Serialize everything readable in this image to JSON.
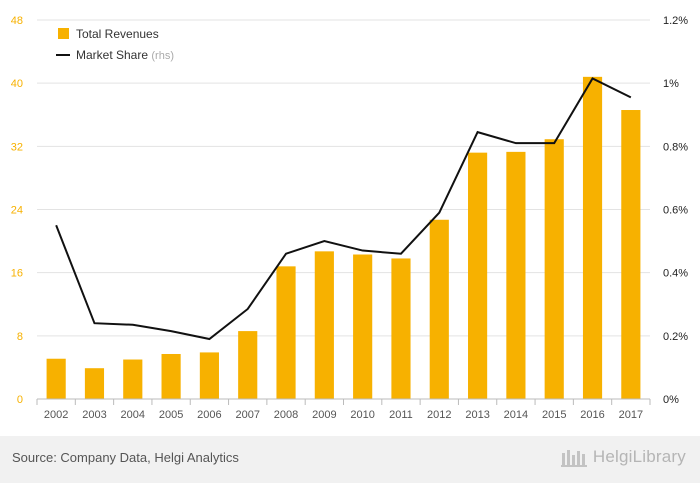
{
  "chart_data": {
    "type": "bar",
    "categories": [
      "2002",
      "2003",
      "2004",
      "2005",
      "2006",
      "2007",
      "2008",
      "2009",
      "2010",
      "2011",
      "2012",
      "2013",
      "2014",
      "2015",
      "2016",
      "2017"
    ],
    "series": [
      {
        "name": "Total Revenues",
        "type": "bar",
        "axis": "left",
        "values": [
          5.1,
          3.9,
          5.0,
          5.7,
          5.9,
          8.6,
          16.8,
          18.7,
          18.3,
          17.8,
          22.7,
          31.2,
          31.3,
          32.9,
          40.8,
          36.6
        ]
      },
      {
        "name": "Market Share",
        "name_suffix": "(rhs)",
        "type": "line",
        "axis": "right",
        "values": [
          0.55,
          0.24,
          0.235,
          0.215,
          0.19,
          0.285,
          0.46,
          0.5,
          0.47,
          0.46,
          0.59,
          0.845,
          0.81,
          0.81,
          1.015,
          0.955
        ]
      }
    ],
    "y_left": {
      "ticks": [
        0,
        8,
        16,
        24,
        32,
        40,
        48
      ],
      "ylim": [
        0,
        48
      ]
    },
    "y_right": {
      "ticks": [
        0,
        0.2,
        0.4,
        0.6,
        0.8,
        1.0,
        1.2
      ],
      "tick_labels": [
        "0%",
        "0.2%",
        "0.4%",
        "0.6%",
        "0.8%",
        "1%",
        "1.2%"
      ],
      "ylim": [
        0,
        1.2
      ]
    },
    "grid": true,
    "legend_position": "top-left",
    "colors": {
      "bar": "#f7b100",
      "line": "#111111",
      "left_ticks": "#f7b100",
      "right_ticks": "#222222",
      "x_ticks": "#555555",
      "grid": "#e3e3e3",
      "legend_suffix": "#aaaaaa"
    }
  },
  "footer": {
    "source": "Source: Company Data, Helgi Analytics",
    "brand": "HelgiLibrary"
  }
}
